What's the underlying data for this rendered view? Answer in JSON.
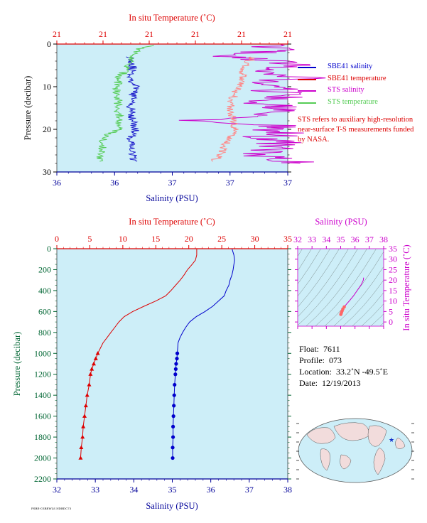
{
  "chart_data": [
    {
      "type": "line",
      "id": "top-profile",
      "top_axis_label": "In situ Temperature (˚C)",
      "top_tick_labels": [
        "21",
        "21",
        "21",
        "21",
        "21",
        "21"
      ],
      "bottom_axis_label": "Salinity (PSU)",
      "bottom_tick_labels": [
        "36",
        "36",
        "37",
        "37",
        "37"
      ],
      "ylabel": "Pressure (decibar)",
      "ylim": [
        0,
        30
      ],
      "ytick_labels": [
        "0",
        "10",
        "20",
        "30"
      ],
      "salinity_range": [
        36,
        37
      ],
      "temperature_range": [
        20.94,
        21.24
      ],
      "legend": [
        {
          "label": "SBE41 salinity",
          "color": "#0000cc"
        },
        {
          "label": "SBE41 temperature",
          "color": "#dd0000"
        },
        {
          "label": "STS salinity",
          "color": "#cc00cc"
        },
        {
          "label": "STS temperature",
          "color": "#55cc55"
        }
      ],
      "note": "STS refers to auxiliary high-resolution near-surface T-S measurements funded by NASA.",
      "series": [
        {
          "name": "SBE41 salinity",
          "color": "#2222cc",
          "axis": "salinity",
          "pressure": [
            3,
            5,
            8,
            10,
            12,
            15,
            18,
            20,
            22,
            25,
            27.5
          ],
          "values": [
            36.32,
            36.33,
            36.32,
            36.34,
            36.33,
            36.32,
            36.33,
            36.34,
            36.32,
            36.33,
            36.33
          ]
        },
        {
          "name": "STS salinity",
          "color": "#cc00cc",
          "axis": "salinity",
          "pressure": [
            0.1,
            1,
            2,
            3,
            4,
            5,
            6,
            7,
            8,
            9,
            10,
            11,
            12,
            13,
            14,
            15,
            16,
            17,
            18,
            19,
            20,
            21,
            22,
            23,
            24,
            25,
            26,
            27,
            28
          ],
          "values": [
            36.9,
            36.96,
            36.85,
            36.75,
            36.92,
            37.05,
            36.88,
            36.95,
            37.1,
            36.85,
            36.98,
            36.9,
            37.05,
            36.92,
            36.88,
            37.0,
            36.9,
            36.85,
            36.55,
            36.95,
            36.9,
            37.0,
            36.88,
            36.96,
            36.9,
            36.95,
            36.88,
            36.92,
            37.05
          ]
        },
        {
          "name": "STS temperature",
          "color": "#55cc55",
          "axis": "temperature",
          "pressure": [
            0.3,
            1,
            2,
            3,
            4,
            5,
            6,
            7,
            8,
            9,
            10,
            12,
            14,
            16,
            18,
            20,
            21.5,
            22,
            24,
            26,
            27.5
          ],
          "values": [
            21.065,
            21.05,
            21.04,
            21.04,
            21.035,
            21.03,
            21.03,
            21.025,
            21.02,
            21.02,
            21.015,
            21.02,
            21.02,
            21.02,
            21.02,
            21.02,
            21.005,
            21.0,
            21.0,
            20.995,
            21.0
          ]
        },
        {
          "name": "SBE41 temperature",
          "color": "#ff8888",
          "axis": "temperature",
          "pressure": [
            3,
            5,
            8,
            10,
            12,
            15,
            18,
            20,
            22,
            25,
            27.5
          ],
          "values": [
            21.195,
            21.185,
            21.18,
            21.175,
            21.17,
            21.165,
            21.17,
            21.17,
            21.165,
            21.155,
            21.145
          ]
        }
      ]
    },
    {
      "type": "line",
      "id": "main-profile",
      "top_axis_label": "In situ Temperature (˚C)",
      "top_tick_labels": [
        "0",
        "5",
        "10",
        "15",
        "20",
        "25",
        "30",
        "35"
      ],
      "bottom_axis_label": "Salinity (PSU)",
      "bottom_tick_labels": [
        "32",
        "33",
        "34",
        "35",
        "36",
        "37",
        "38"
      ],
      "ylabel": "Pressure (decibar)",
      "ylim": [
        0,
        2200
      ],
      "ytick_labels": [
        "0",
        "200",
        "400",
        "600",
        "800",
        "1000",
        "1200",
        "1400",
        "1600",
        "1800",
        "2000",
        "2200"
      ],
      "salinity_range": [
        32,
        38
      ],
      "temperature_range": [
        0,
        35
      ],
      "series": [
        {
          "name": "Temperature",
          "color": "#dd0000",
          "axis": "temperature",
          "pressure": [
            0,
            60,
            110,
            150,
            200,
            250,
            300,
            350,
            400,
            450,
            500,
            550,
            600,
            650,
            700,
            750,
            800,
            850,
            900,
            950,
            1000,
            1050,
            1100,
            1150,
            1200,
            1300,
            1400,
            1500,
            1600,
            1700,
            1800,
            1900,
            2000
          ],
          "values": [
            21.2,
            21.2,
            21.0,
            20.5,
            19.8,
            19.3,
            18.7,
            18.0,
            17.3,
            16.5,
            15.0,
            13.2,
            11.5,
            10.2,
            9.4,
            8.8,
            8.2,
            7.6,
            7.0,
            6.6,
            6.2,
            5.9,
            5.6,
            5.3,
            5.1,
            4.9,
            4.6,
            4.4,
            4.2,
            4.0,
            3.9,
            3.7,
            3.6
          ],
          "markers_from_pressure": 1000
        },
        {
          "name": "Salinity",
          "color": "#0000cc",
          "axis": "salinity",
          "pressure": [
            0,
            60,
            110,
            150,
            200,
            250,
            300,
            350,
            400,
            450,
            500,
            550,
            600,
            650,
            700,
            750,
            800,
            850,
            900,
            950,
            1000,
            1050,
            1100,
            1150,
            1200,
            1300,
            1400,
            1500,
            1600,
            1700,
            1800,
            1900,
            2000
          ],
          "values": [
            36.55,
            36.6,
            36.62,
            36.6,
            36.58,
            36.55,
            36.5,
            36.47,
            36.4,
            36.35,
            36.2,
            36.05,
            35.85,
            35.62,
            35.45,
            35.35,
            35.27,
            35.2,
            35.15,
            35.14,
            35.13,
            35.12,
            35.1,
            35.09,
            35.08,
            35.06,
            35.05,
            35.04,
            35.03,
            35.02,
            35.02,
            35.01,
            35.01
          ],
          "markers_from_pressure": 1000
        }
      ]
    },
    {
      "type": "scatter",
      "id": "ts-diagram",
      "top_axis_label": "Salinity (PSU)",
      "top_tick_labels": [
        "32",
        "33",
        "34",
        "35",
        "36",
        "37",
        "38"
      ],
      "right_axis_label": "In situ Temperature (˚C)",
      "right_tick_labels": [
        "0",
        "5",
        "10",
        "15",
        "20",
        "25",
        "30",
        "35"
      ],
      "xlim": [
        32,
        38
      ],
      "ylim": [
        -2,
        35
      ],
      "series": [
        {
          "name": "T-S",
          "color": "#cc00cc",
          "x": [
            36.6,
            36.58,
            36.45,
            36.2,
            35.9,
            35.6,
            35.4,
            35.25,
            35.15,
            35.1,
            35.06,
            35.03,
            35.01
          ],
          "y": [
            21.2,
            20.0,
            18.0,
            15.5,
            12.5,
            10.0,
            8.5,
            7.2,
            6.2,
            5.3,
            4.6,
            4.0,
            3.6
          ]
        }
      ]
    }
  ],
  "float_info": {
    "float_label": "Float:",
    "float_value": "7611",
    "profile_label": "Profile:",
    "profile_value": "073",
    "location_label": "Location:",
    "location_value": "33.2˚N  -49.5˚E",
    "date_label": "Date:",
    "date_value": "12/19/2013"
  },
  "map": {
    "marker_lat": 33.2,
    "marker_lon": -49.5,
    "marker_symbol": "★",
    "marker_color": "#1133cc"
  },
  "colors": {
    "plot_bg": "#cdeef8",
    "axis_blue": "#000099",
    "axis_red": "#dd0000",
    "axis_magenta": "#cc00cc",
    "axis_green": "#006633"
  },
  "tiny_tag": "FSBE-CSBEWLS NDBDC73"
}
